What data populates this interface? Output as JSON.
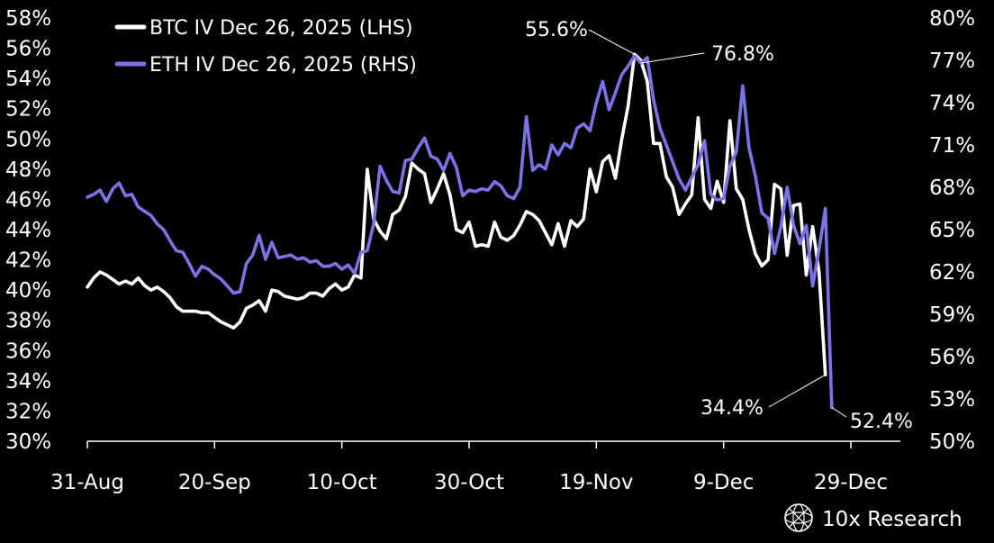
{
  "colors": {
    "background": "#000000",
    "btc": "#ffffff",
    "eth": "#7a73e6",
    "text": "#ffffff",
    "annotation_line": "#ffffff"
  },
  "brand": {
    "name": "10x Research",
    "icon": "globe-icon"
  },
  "chart_data": {
    "type": "line",
    "legend_position": "top-left",
    "grid": false,
    "x_ticks": [
      "31-Aug",
      "20-Sep",
      "10-Oct",
      "30-Oct",
      "19-Nov",
      "9-Dec",
      "29-Dec"
    ],
    "xlim": [
      "2025-08-31",
      "2025-12-29"
    ],
    "y_left": {
      "ticks": [
        "30%",
        "32%",
        "34%",
        "36%",
        "38%",
        "40%",
        "42%",
        "44%",
        "46%",
        "48%",
        "50%",
        "52%",
        "54%",
        "56%",
        "58%"
      ],
      "range": [
        30,
        58
      ]
    },
    "y_right": {
      "ticks": [
        "50%",
        "53%",
        "56%",
        "59%",
        "62%",
        "65%",
        "68%",
        "71%",
        "74%",
        "77%",
        "80%"
      ],
      "range": [
        50,
        80
      ]
    },
    "series": [
      {
        "name": "BTC IV Dec 26, 2025 (LHS)",
        "axis": "left",
        "color": "#ffffff",
        "points": [
          [
            "2025-08-31",
            40.2
          ],
          [
            "2025-09-01",
            40.8
          ],
          [
            "2025-09-02",
            41.2
          ],
          [
            "2025-09-03",
            41.0
          ],
          [
            "2025-09-04",
            40.7
          ],
          [
            "2025-09-05",
            40.4
          ],
          [
            "2025-09-06",
            40.6
          ],
          [
            "2025-09-07",
            40.4
          ],
          [
            "2025-09-08",
            40.8
          ],
          [
            "2025-09-09",
            40.3
          ],
          [
            "2025-09-10",
            40.0
          ],
          [
            "2025-09-11",
            40.2
          ],
          [
            "2025-09-12",
            39.9
          ],
          [
            "2025-09-13",
            39.5
          ],
          [
            "2025-09-14",
            38.9
          ],
          [
            "2025-09-15",
            38.6
          ],
          [
            "2025-09-16",
            38.6
          ],
          [
            "2025-09-17",
            38.6
          ],
          [
            "2025-09-18",
            38.5
          ],
          [
            "2025-09-19",
            38.5
          ],
          [
            "2025-09-20",
            38.2
          ],
          [
            "2025-09-21",
            37.9
          ],
          [
            "2025-09-22",
            37.7
          ],
          [
            "2025-09-23",
            37.5
          ],
          [
            "2025-09-24",
            37.9
          ],
          [
            "2025-09-25",
            38.8
          ],
          [
            "2025-09-26",
            39.0
          ],
          [
            "2025-09-27",
            39.3
          ],
          [
            "2025-09-28",
            38.6
          ],
          [
            "2025-09-29",
            40.0
          ],
          [
            "2025-09-30",
            39.9
          ],
          [
            "2025-10-01",
            39.6
          ],
          [
            "2025-10-02",
            39.5
          ],
          [
            "2025-10-03",
            39.4
          ],
          [
            "2025-10-04",
            39.5
          ],
          [
            "2025-10-05",
            39.8
          ],
          [
            "2025-10-06",
            39.8
          ],
          [
            "2025-10-07",
            39.6
          ],
          [
            "2025-10-08",
            40.1
          ],
          [
            "2025-10-09",
            40.4
          ],
          [
            "2025-10-10",
            40.0
          ],
          [
            "2025-10-11",
            40.2
          ],
          [
            "2025-10-12",
            41.0
          ],
          [
            "2025-10-13",
            40.8
          ],
          [
            "2025-10-14",
            48.0
          ],
          [
            "2025-10-15",
            44.7
          ],
          [
            "2025-10-16",
            43.9
          ],
          [
            "2025-10-17",
            43.4
          ],
          [
            "2025-10-18",
            45.0
          ],
          [
            "2025-10-19",
            45.3
          ],
          [
            "2025-10-20",
            46.2
          ],
          [
            "2025-10-21",
            48.4
          ],
          [
            "2025-10-22",
            48.0
          ],
          [
            "2025-10-23",
            47.7
          ],
          [
            "2025-10-24",
            45.8
          ],
          [
            "2025-10-25",
            46.7
          ],
          [
            "2025-10-26",
            47.7
          ],
          [
            "2025-10-27",
            46.3
          ],
          [
            "2025-10-28",
            44.0
          ],
          [
            "2025-10-29",
            43.8
          ],
          [
            "2025-10-30",
            44.5
          ],
          [
            "2025-10-31",
            42.9
          ],
          [
            "2025-11-01",
            43.0
          ],
          [
            "2025-11-02",
            42.9
          ],
          [
            "2025-11-03",
            44.5
          ],
          [
            "2025-11-04",
            43.5
          ],
          [
            "2025-11-05",
            43.3
          ],
          [
            "2025-11-06",
            43.6
          ],
          [
            "2025-11-07",
            44.3
          ],
          [
            "2025-11-08",
            45.2
          ],
          [
            "2025-11-09",
            45.0
          ],
          [
            "2025-11-10",
            44.6
          ],
          [
            "2025-11-11",
            43.8
          ],
          [
            "2025-11-12",
            43.0
          ],
          [
            "2025-11-13",
            44.4
          ],
          [
            "2025-11-14",
            42.9
          ],
          [
            "2025-11-15",
            44.6
          ],
          [
            "2025-11-16",
            44.2
          ],
          [
            "2025-11-17",
            44.7
          ],
          [
            "2025-11-18",
            48.0
          ],
          [
            "2025-11-19",
            46.5
          ],
          [
            "2025-11-20",
            48.5
          ],
          [
            "2025-11-21",
            48.9
          ],
          [
            "2025-11-22",
            47.4
          ],
          [
            "2025-11-23",
            50.0
          ],
          [
            "2025-11-24",
            52.2
          ],
          [
            "2025-11-25",
            55.6
          ],
          [
            "2025-11-26",
            55.2
          ],
          [
            "2025-11-27",
            53.8
          ],
          [
            "2025-11-28",
            49.7
          ],
          [
            "2025-11-29",
            49.7
          ],
          [
            "2025-11-30",
            47.5
          ],
          [
            "2025-12-01",
            46.8
          ],
          [
            "2025-12-02",
            45.0
          ],
          [
            "2025-12-03",
            45.7
          ],
          [
            "2025-12-04",
            46.3
          ],
          [
            "2025-12-05",
            51.4
          ],
          [
            "2025-12-06",
            46.0
          ],
          [
            "2025-12-07",
            45.4
          ],
          [
            "2025-12-08",
            47.2
          ],
          [
            "2025-12-09",
            45.8
          ],
          [
            "2025-12-10",
            51.2
          ],
          [
            "2025-12-11",
            46.7
          ],
          [
            "2025-12-12",
            46.0
          ],
          [
            "2025-12-13",
            44.0
          ],
          [
            "2025-12-14",
            42.4
          ],
          [
            "2025-12-15",
            41.6
          ],
          [
            "2025-12-16",
            42.0
          ],
          [
            "2025-12-17",
            47.0
          ],
          [
            "2025-12-18",
            46.7
          ],
          [
            "2025-12-19",
            42.3
          ],
          [
            "2025-12-20",
            45.6
          ],
          [
            "2025-12-21",
            45.7
          ],
          [
            "2025-12-22",
            41.0
          ],
          [
            "2025-12-23",
            44.2
          ],
          [
            "2025-12-24",
            41.2
          ],
          [
            "2025-12-25",
            34.4
          ]
        ]
      },
      {
        "name": "ETH IV Dec 26, 2025 (RHS)",
        "axis": "right",
        "color": "#7a73e6",
        "points": [
          [
            "2025-08-31",
            67.3
          ],
          [
            "2025-09-01",
            67.5
          ],
          [
            "2025-09-02",
            67.8
          ],
          [
            "2025-09-03",
            67.0
          ],
          [
            "2025-09-04",
            67.9
          ],
          [
            "2025-09-05",
            68.3
          ],
          [
            "2025-09-06",
            67.4
          ],
          [
            "2025-09-07",
            67.5
          ],
          [
            "2025-09-08",
            66.6
          ],
          [
            "2025-09-09",
            66.3
          ],
          [
            "2025-09-10",
            66.0
          ],
          [
            "2025-09-11",
            65.4
          ],
          [
            "2025-09-12",
            65.0
          ],
          [
            "2025-09-13",
            64.2
          ],
          [
            "2025-09-14",
            63.5
          ],
          [
            "2025-09-15",
            63.4
          ],
          [
            "2025-09-16",
            62.6
          ],
          [
            "2025-09-17",
            61.7
          ],
          [
            "2025-09-18",
            62.4
          ],
          [
            "2025-09-19",
            62.2
          ],
          [
            "2025-09-20",
            61.8
          ],
          [
            "2025-09-21",
            61.5
          ],
          [
            "2025-09-22",
            61.0
          ],
          [
            "2025-09-23",
            60.5
          ],
          [
            "2025-09-24",
            60.6
          ],
          [
            "2025-09-25",
            62.6
          ],
          [
            "2025-09-26",
            63.2
          ],
          [
            "2025-09-27",
            64.6
          ],
          [
            "2025-09-28",
            62.9
          ],
          [
            "2025-09-29",
            64.1
          ],
          [
            "2025-09-30",
            63.0
          ],
          [
            "2025-10-01",
            63.1
          ],
          [
            "2025-10-02",
            63.2
          ],
          [
            "2025-10-03",
            62.9
          ],
          [
            "2025-10-04",
            63.0
          ],
          [
            "2025-10-05",
            62.7
          ],
          [
            "2025-10-06",
            62.8
          ],
          [
            "2025-10-07",
            62.4
          ],
          [
            "2025-10-08",
            62.4
          ],
          [
            "2025-10-09",
            62.6
          ],
          [
            "2025-10-10",
            62.2
          ],
          [
            "2025-10-11",
            62.5
          ],
          [
            "2025-10-12",
            61.9
          ],
          [
            "2025-10-13",
            63.4
          ],
          [
            "2025-10-14",
            63.5
          ],
          [
            "2025-10-15",
            65.4
          ],
          [
            "2025-10-16",
            69.5
          ],
          [
            "2025-10-17",
            68.5
          ],
          [
            "2025-10-18",
            67.7
          ],
          [
            "2025-10-19",
            67.6
          ],
          [
            "2025-10-20",
            69.9
          ],
          [
            "2025-10-21",
            70.0
          ],
          [
            "2025-10-22",
            70.8
          ],
          [
            "2025-10-23",
            71.5
          ],
          [
            "2025-10-24",
            70.2
          ],
          [
            "2025-10-25",
            70.0
          ],
          [
            "2025-10-26",
            69.2
          ],
          [
            "2025-10-27",
            70.4
          ],
          [
            "2025-10-28",
            69.4
          ],
          [
            "2025-10-29",
            67.4
          ],
          [
            "2025-10-30",
            67.8
          ],
          [
            "2025-10-31",
            67.7
          ],
          [
            "2025-11-01",
            67.9
          ],
          [
            "2025-11-02",
            67.8
          ],
          [
            "2025-11-03",
            68.4
          ],
          [
            "2025-11-04",
            68.1
          ],
          [
            "2025-11-05",
            67.4
          ],
          [
            "2025-11-06",
            67.2
          ],
          [
            "2025-11-07",
            68.0
          ],
          [
            "2025-11-08",
            73.0
          ],
          [
            "2025-11-09",
            69.2
          ],
          [
            "2025-11-10",
            69.6
          ],
          [
            "2025-11-11",
            69.3
          ],
          [
            "2025-11-12",
            71.0
          ],
          [
            "2025-11-13",
            70.3
          ],
          [
            "2025-11-14",
            71.1
          ],
          [
            "2025-11-15",
            70.8
          ],
          [
            "2025-11-16",
            72.2
          ],
          [
            "2025-11-17",
            72.5
          ],
          [
            "2025-11-18",
            72.0
          ],
          [
            "2025-11-19",
            74.0
          ],
          [
            "2025-11-20",
            75.5
          ],
          [
            "2025-11-21",
            73.5
          ],
          [
            "2025-11-22",
            74.7
          ],
          [
            "2025-11-23",
            76.0
          ],
          [
            "2025-11-24",
            76.6
          ],
          [
            "2025-11-25",
            77.3
          ],
          [
            "2025-11-26",
            76.8
          ],
          [
            "2025-11-27",
            77.2
          ],
          [
            "2025-11-28",
            74.2
          ],
          [
            "2025-11-29",
            72.2
          ],
          [
            "2025-11-30",
            71.0
          ],
          [
            "2025-12-01",
            69.8
          ],
          [
            "2025-12-02",
            68.6
          ],
          [
            "2025-12-03",
            67.8
          ],
          [
            "2025-12-04",
            68.7
          ],
          [
            "2025-12-05",
            69.6
          ],
          [
            "2025-12-06",
            71.3
          ],
          [
            "2025-12-07",
            67.5
          ],
          [
            "2025-12-08",
            67.1
          ],
          [
            "2025-12-09",
            67.2
          ],
          [
            "2025-12-10",
            69.5
          ],
          [
            "2025-12-11",
            70.5
          ],
          [
            "2025-12-12",
            75.2
          ],
          [
            "2025-12-13",
            70.8
          ],
          [
            "2025-12-14",
            68.8
          ],
          [
            "2025-12-15",
            66.2
          ],
          [
            "2025-12-16",
            65.8
          ],
          [
            "2025-12-17",
            63.3
          ],
          [
            "2025-12-18",
            65.2
          ],
          [
            "2025-12-19",
            68.0
          ],
          [
            "2025-12-20",
            65.3
          ],
          [
            "2025-12-21",
            64.0
          ],
          [
            "2025-12-22",
            65.3
          ],
          [
            "2025-12-23",
            61.0
          ],
          [
            "2025-12-24",
            63.6
          ],
          [
            "2025-12-25",
            66.5
          ],
          [
            "2025-12-26",
            52.4
          ]
        ]
      }
    ],
    "annotations": [
      {
        "text": "55.6%",
        "series": "BTC IV Dec 26, 2025 (LHS)",
        "date": "2025-11-25",
        "value": 55.6
      },
      {
        "text": "76.8%",
        "series": "ETH IV Dec 26, 2025 (RHS)",
        "date": "2025-11-26",
        "value": 76.8
      },
      {
        "text": "34.4%",
        "series": "BTC IV Dec 26, 2025 (LHS)",
        "date": "2025-12-25",
        "value": 34.4
      },
      {
        "text": "52.4%",
        "series": "ETH IV Dec 26, 2025 (RHS)",
        "date": "2025-12-26",
        "value": 52.4
      }
    ]
  }
}
